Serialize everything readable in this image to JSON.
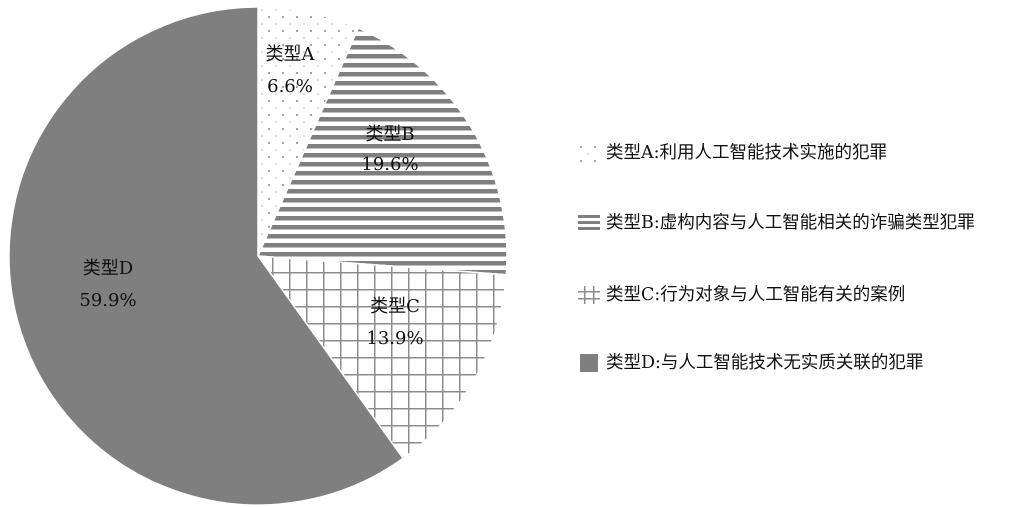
{
  "chart_data": {
    "type": "pie",
    "start": "top",
    "direction": "clockwise",
    "slices": [
      {
        "label": "类型A",
        "value": 6.6,
        "value_label": "6.6%",
        "legend": "类型A:利用人工智能技术实施的犯罪",
        "pattern": "dots",
        "color": "#8c8c8c"
      },
      {
        "label": "类型B",
        "value": 19.6,
        "value_label": "19.6%",
        "legend": "类型B:虚构内容与人工智能相关的诈骗类型犯罪",
        "pattern": "horizontal-stripes",
        "color": "#7f7f7f"
      },
      {
        "label": "类型C",
        "value": 13.9,
        "value_label": "13.9%",
        "legend": "类型C:行为对象与人工智能有关的案例",
        "pattern": "grid",
        "color": "#8c8c8c"
      },
      {
        "label": "类型D",
        "value": 59.9,
        "value_label": "59.9%",
        "legend": "类型D:与人工智能技术无实质关联的犯罪",
        "pattern": "solid",
        "color": "#7f7f7f"
      }
    ],
    "legend_position": "right"
  }
}
